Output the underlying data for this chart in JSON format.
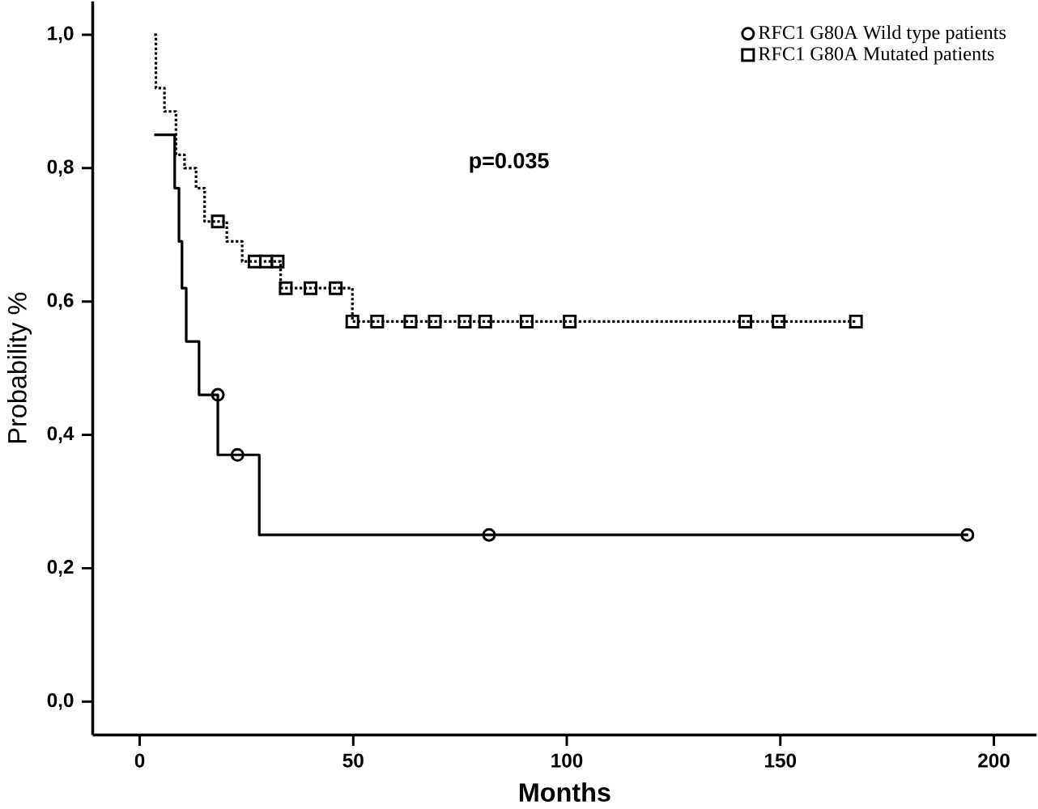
{
  "chart_data": {
    "type": "step",
    "xlabel": "Months",
    "ylabel": "Probability %",
    "xlim": [
      -11,
      210
    ],
    "ylim": [
      -0.05,
      1.05
    ],
    "xticks": [
      0,
      50,
      100,
      150,
      200
    ],
    "yticks": [
      {
        "value": 0,
        "label": "0,0"
      },
      {
        "value": 0.2,
        "label": "0,2"
      },
      {
        "value": 0.4,
        "label": "0,4"
      },
      {
        "value": 0.6,
        "label": "0,6"
      },
      {
        "value": 0.8,
        "label": "0,8"
      },
      {
        "value": 1.0,
        "label": "1,0"
      }
    ],
    "legend": "top right",
    "annotations": [
      "p=0.035"
    ],
    "series": [
      {
        "color": "#000000",
        "line_style": "solid",
        "marker": "none",
        "x": [
          3.4,
          8.2,
          9.2,
          9.9,
          10.9,
          13.9,
          18.3,
          28,
          194
        ],
        "values": [
          0.85,
          0.77,
          0.69,
          0.62,
          0.54,
          0.46,
          0.37,
          0.25,
          0.25
        ]
      },
      {
        "color": "#000000",
        "line_style": "dotted",
        "marker": "none",
        "x": [
          3.4,
          3.8,
          5.8,
          8.5,
          10.5,
          13.2,
          15.2,
          20.4,
          24,
          33,
          49.8,
          167.7
        ],
        "values": [
          1.0,
          0.92,
          0.885,
          0.82,
          0.8,
          0.77,
          0.72,
          0.69,
          0.66,
          0.62,
          0.57,
          0.57
        ]
      },
      {
        "type": "scatter",
        "name": "RFC1 G80A Wild type patients",
        "color": "#000000",
        "marker": "circle",
        "x": [
          18.3,
          22.9,
          81.8,
          193.8
        ],
        "values": [
          0.46,
          0.37,
          0.25,
          0.25
        ]
      },
      {
        "type": "scatter",
        "name": "RFC1 G80A Mutated patients",
        "color": "#000000",
        "marker": "square",
        "x": [
          18.3,
          26.9,
          29.6,
          32.3,
          34.2,
          40,
          45.9,
          49.8,
          55.6,
          63.4,
          69.1,
          76.1,
          80.9,
          90.6,
          100.7,
          141.8,
          149.6,
          167.7
        ],
        "values": [
          0.72,
          0.66,
          0.66,
          0.66,
          0.62,
          0.62,
          0.62,
          0.57,
          0.57,
          0.57,
          0.57,
          0.57,
          0.57,
          0.57,
          0.57,
          0.57,
          0.57,
          0.57
        ]
      }
    ]
  }
}
